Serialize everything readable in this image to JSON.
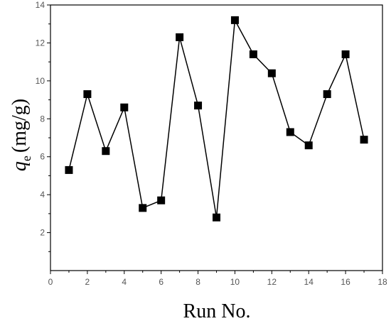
{
  "chart_data": {
    "type": "scatter",
    "style": "line-with-square-markers",
    "xlabel": "Run No.",
    "ylabel_main": "q",
    "ylabel_sub": "e",
    "ylabel_unit": "(mg/g)",
    "xlim": [
      0,
      18
    ],
    "ylim": [
      0,
      14
    ],
    "xticks": [
      0,
      2,
      4,
      6,
      8,
      10,
      12,
      14,
      16,
      18
    ],
    "yticks": [
      2,
      4,
      6,
      8,
      10,
      12,
      14
    ],
    "grid": false,
    "series": [
      {
        "x": [
          1,
          2,
          3,
          4,
          5,
          6,
          7,
          8,
          9,
          10,
          11,
          12,
          13,
          14,
          15,
          16,
          17
        ],
        "y": [
          5.3,
          9.3,
          6.3,
          8.6,
          3.3,
          3.7,
          12.3,
          8.7,
          2.8,
          13.2,
          11.4,
          10.4,
          7.3,
          6.6,
          9.3,
          11.4,
          6.9
        ],
        "color": "#000000"
      }
    ]
  }
}
